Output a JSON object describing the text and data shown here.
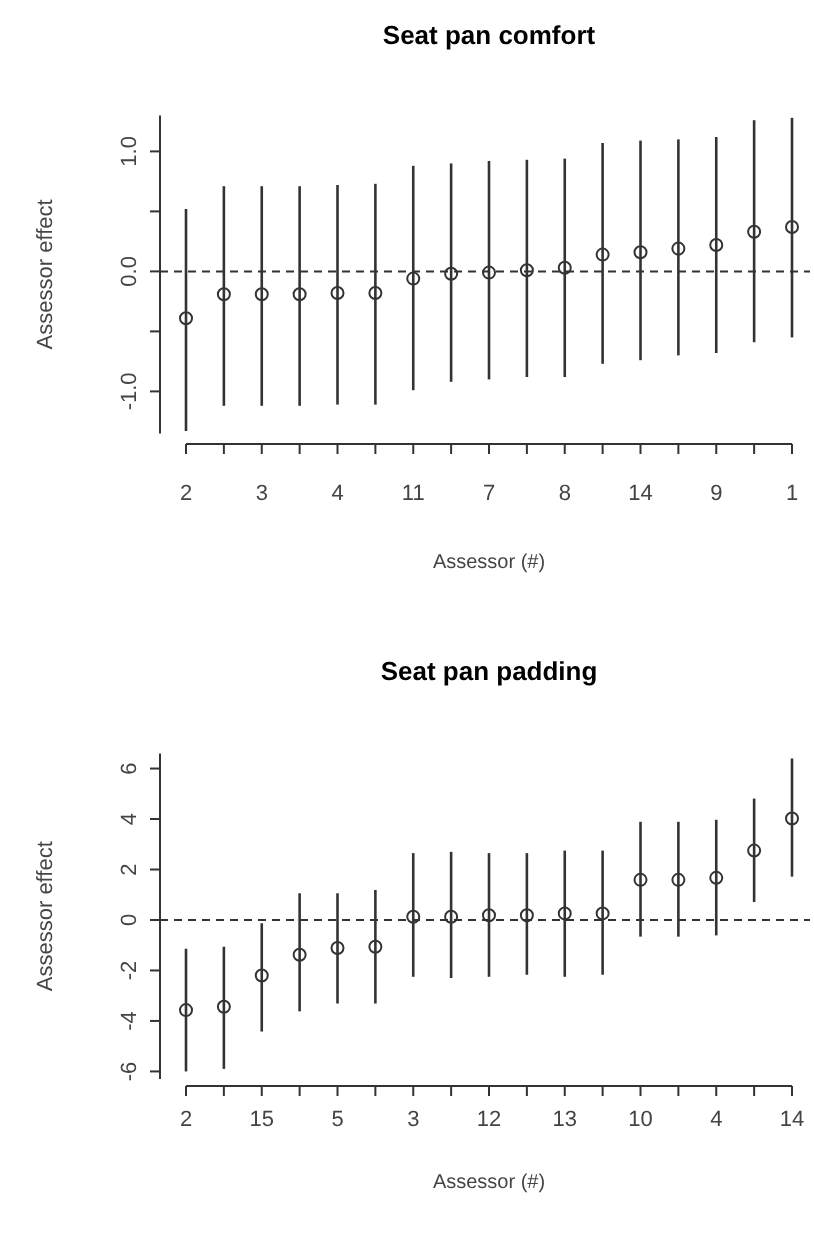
{
  "chart_data": [
    {
      "type": "scatter",
      "title": "Seat pan comfort",
      "xlabel": "Assessor (#)",
      "ylabel": "Assessor effect",
      "categories": [
        "2",
        null,
        "3",
        null,
        "4",
        null,
        "11",
        null,
        "7",
        null,
        "8",
        null,
        "14",
        null,
        "9",
        null,
        "1"
      ],
      "values": [
        -0.39,
        -0.19,
        -0.19,
        -0.19,
        -0.18,
        -0.18,
        -0.06,
        -0.02,
        -0.01,
        0.01,
        0.03,
        0.14,
        0.16,
        0.19,
        0.22,
        0.33,
        0.37
      ],
      "errors": [
        [
          -1.33,
          0.52
        ],
        [
          -1.12,
          0.71
        ],
        [
          -1.12,
          0.71
        ],
        [
          -1.12,
          0.71
        ],
        [
          -1.11,
          0.72
        ],
        [
          -1.11,
          0.73
        ],
        [
          -0.99,
          0.88
        ],
        [
          -0.92,
          0.9
        ],
        [
          -0.9,
          0.92
        ],
        [
          -0.88,
          0.93
        ],
        [
          -0.88,
          0.94
        ],
        [
          -0.77,
          1.07
        ],
        [
          -0.74,
          1.09
        ],
        [
          -0.7,
          1.1
        ],
        [
          -0.68,
          1.12
        ],
        [
          -0.59,
          1.26
        ],
        [
          -0.55,
          1.28
        ]
      ],
      "color": "#333333",
      "marker": "circle",
      "ylim": [
        -1.35,
        1.3
      ],
      "yticks": [
        {
          "value": -1,
          "label": "-1.0"
        },
        {
          "value": -0.5,
          "label": null
        },
        {
          "value": 0,
          "label": "0.0"
        },
        {
          "value": 0.5,
          "label": null
        },
        {
          "value": 1,
          "label": "1.0"
        }
      ],
      "ref_lines": [
        {
          "axis": "y",
          "value": 0,
          "line_style": "dashed",
          "color": "#333333"
        }
      ],
      "grid": false
    },
    {
      "type": "scatter",
      "title": "Seat pan padding",
      "xlabel": "Assessor (#)",
      "ylabel": "Assessor effect",
      "categories": [
        "2",
        null,
        "15",
        null,
        "5",
        null,
        "3",
        null,
        "12",
        null,
        "13",
        null,
        "10",
        null,
        "4",
        null,
        "14"
      ],
      "values": [
        -3.57,
        -3.44,
        -2.2,
        -1.38,
        -1.11,
        -1.06,
        0.13,
        0.13,
        0.19,
        0.19,
        0.26,
        0.26,
        1.59,
        1.59,
        1.67,
        2.75,
        4.02
      ],
      "errors": [
        [
          -6.0,
          -1.14
        ],
        [
          -5.9,
          -1.06
        ],
        [
          -4.42,
          -0.13
        ],
        [
          -3.62,
          1.06
        ],
        [
          -3.31,
          1.06
        ],
        [
          -3.31,
          1.19
        ],
        [
          -2.25,
          2.65
        ],
        [
          -2.3,
          2.7
        ],
        [
          -2.25,
          2.65
        ],
        [
          -2.17,
          2.65
        ],
        [
          -2.25,
          2.75
        ],
        [
          -2.17,
          2.75
        ],
        [
          -0.66,
          3.89
        ],
        [
          -0.66,
          3.89
        ],
        [
          -0.61,
          3.97
        ],
        [
          0.71,
          4.81
        ],
        [
          1.72,
          6.4
        ]
      ],
      "color": "#333333",
      "marker": "circle",
      "ylim": [
        -6.3,
        6.6
      ],
      "yticks": [
        -6,
        -4,
        -2,
        0,
        2,
        4,
        6
      ],
      "ref_lines": [
        {
          "axis": "y",
          "value": 0,
          "line_style": "dashed",
          "color": "#333333"
        }
      ],
      "grid": false
    }
  ]
}
